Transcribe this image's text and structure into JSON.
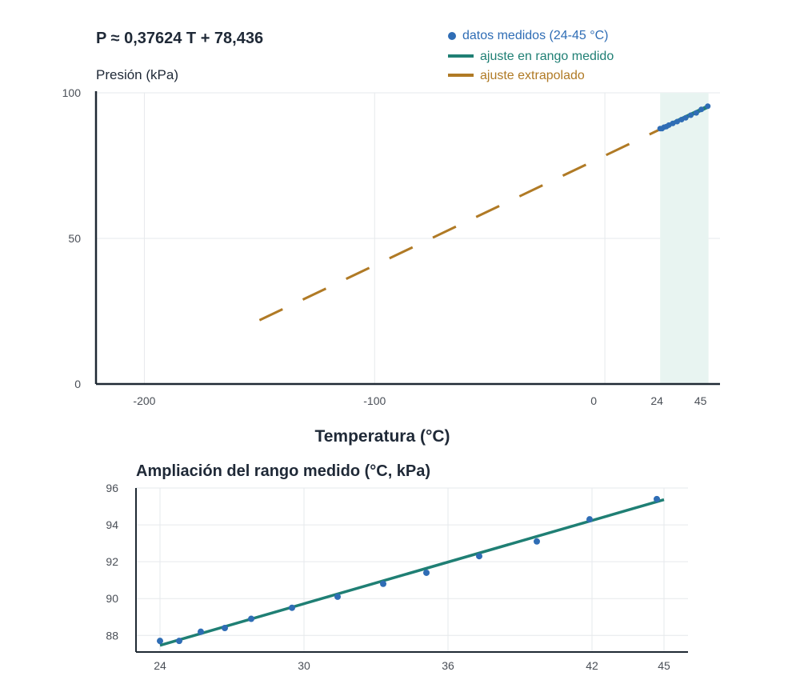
{
  "colors": {
    "measured": "#2f6db5",
    "fit": "#1f7f74",
    "extrapolated": "#b07a25",
    "band": "#e8f4f1",
    "grid": "#e6e9ec",
    "axis": "#1f2933"
  },
  "chart_data": [
    {
      "type": "line",
      "equation": "P ≈ 0,37624 T + 78,436",
      "ylabel": "Presión (kPa)",
      "xlabel": "Temperatura (°C)",
      "xlim": [
        -221,
        50
      ],
      "ylim": [
        0,
        100
      ],
      "xticks": [
        -200,
        -100,
        0,
        24,
        45
      ],
      "xtick_labels": [
        "-200",
        "-100",
        "0",
        "24",
        "45"
      ],
      "yticks": [
        0,
        50,
        100
      ],
      "ytick_labels": [
        "0",
        "50",
        "100"
      ],
      "grid": true,
      "legend_position": "top-right",
      "shaded_range": [
        24,
        45
      ],
      "series": [
        {
          "name": "datos medidos (24-45 °C)",
          "kind": "scatter",
          "x": [
            24.0,
            24.8,
            25.7,
            26.7,
            27.8,
            29.5,
            31.4,
            33.3,
            35.1,
            37.3,
            39.7,
            41.9,
            44.7
          ],
          "y": [
            87.7,
            87.7,
            88.2,
            88.4,
            88.9,
            89.5,
            90.1,
            90.8,
            91.4,
            92.3,
            93.1,
            94.3,
            95.4
          ]
        },
        {
          "name": "ajuste en rango medido",
          "kind": "line",
          "x": [
            24,
            45
          ],
          "y": [
            87.46,
            95.37
          ]
        },
        {
          "name": "ajuste extrapolado",
          "kind": "dashed-line",
          "x": [
            -150,
            24
          ],
          "y": [
            21.9,
            87.46
          ]
        }
      ]
    },
    {
      "type": "line",
      "title": "Ampliación del rango medido (°C, kPa)",
      "xlim": [
        23,
        46
      ],
      "ylim": [
        87.1,
        96
      ],
      "xticks": [
        24,
        30,
        36,
        42,
        45
      ],
      "xtick_labels": [
        "24",
        "30",
        "36",
        "42",
        "45"
      ],
      "yticks": [
        88,
        90,
        92,
        94,
        96
      ],
      "ytick_labels": [
        "88",
        "90",
        "92",
        "94",
        "96"
      ],
      "grid": true,
      "series": [
        {
          "name": "datos medidos (24-45 °C)",
          "kind": "scatter",
          "x": [
            24.0,
            24.8,
            25.7,
            26.7,
            27.8,
            29.5,
            31.4,
            33.3,
            35.1,
            37.3,
            39.7,
            41.9,
            44.7
          ],
          "y": [
            87.7,
            87.7,
            88.2,
            88.4,
            88.9,
            89.5,
            90.1,
            90.8,
            91.4,
            92.3,
            93.1,
            94.3,
            95.4
          ]
        },
        {
          "name": "ajuste en rango medido",
          "kind": "line",
          "x": [
            24,
            45
          ],
          "y": [
            87.46,
            95.37
          ]
        }
      ]
    }
  ]
}
